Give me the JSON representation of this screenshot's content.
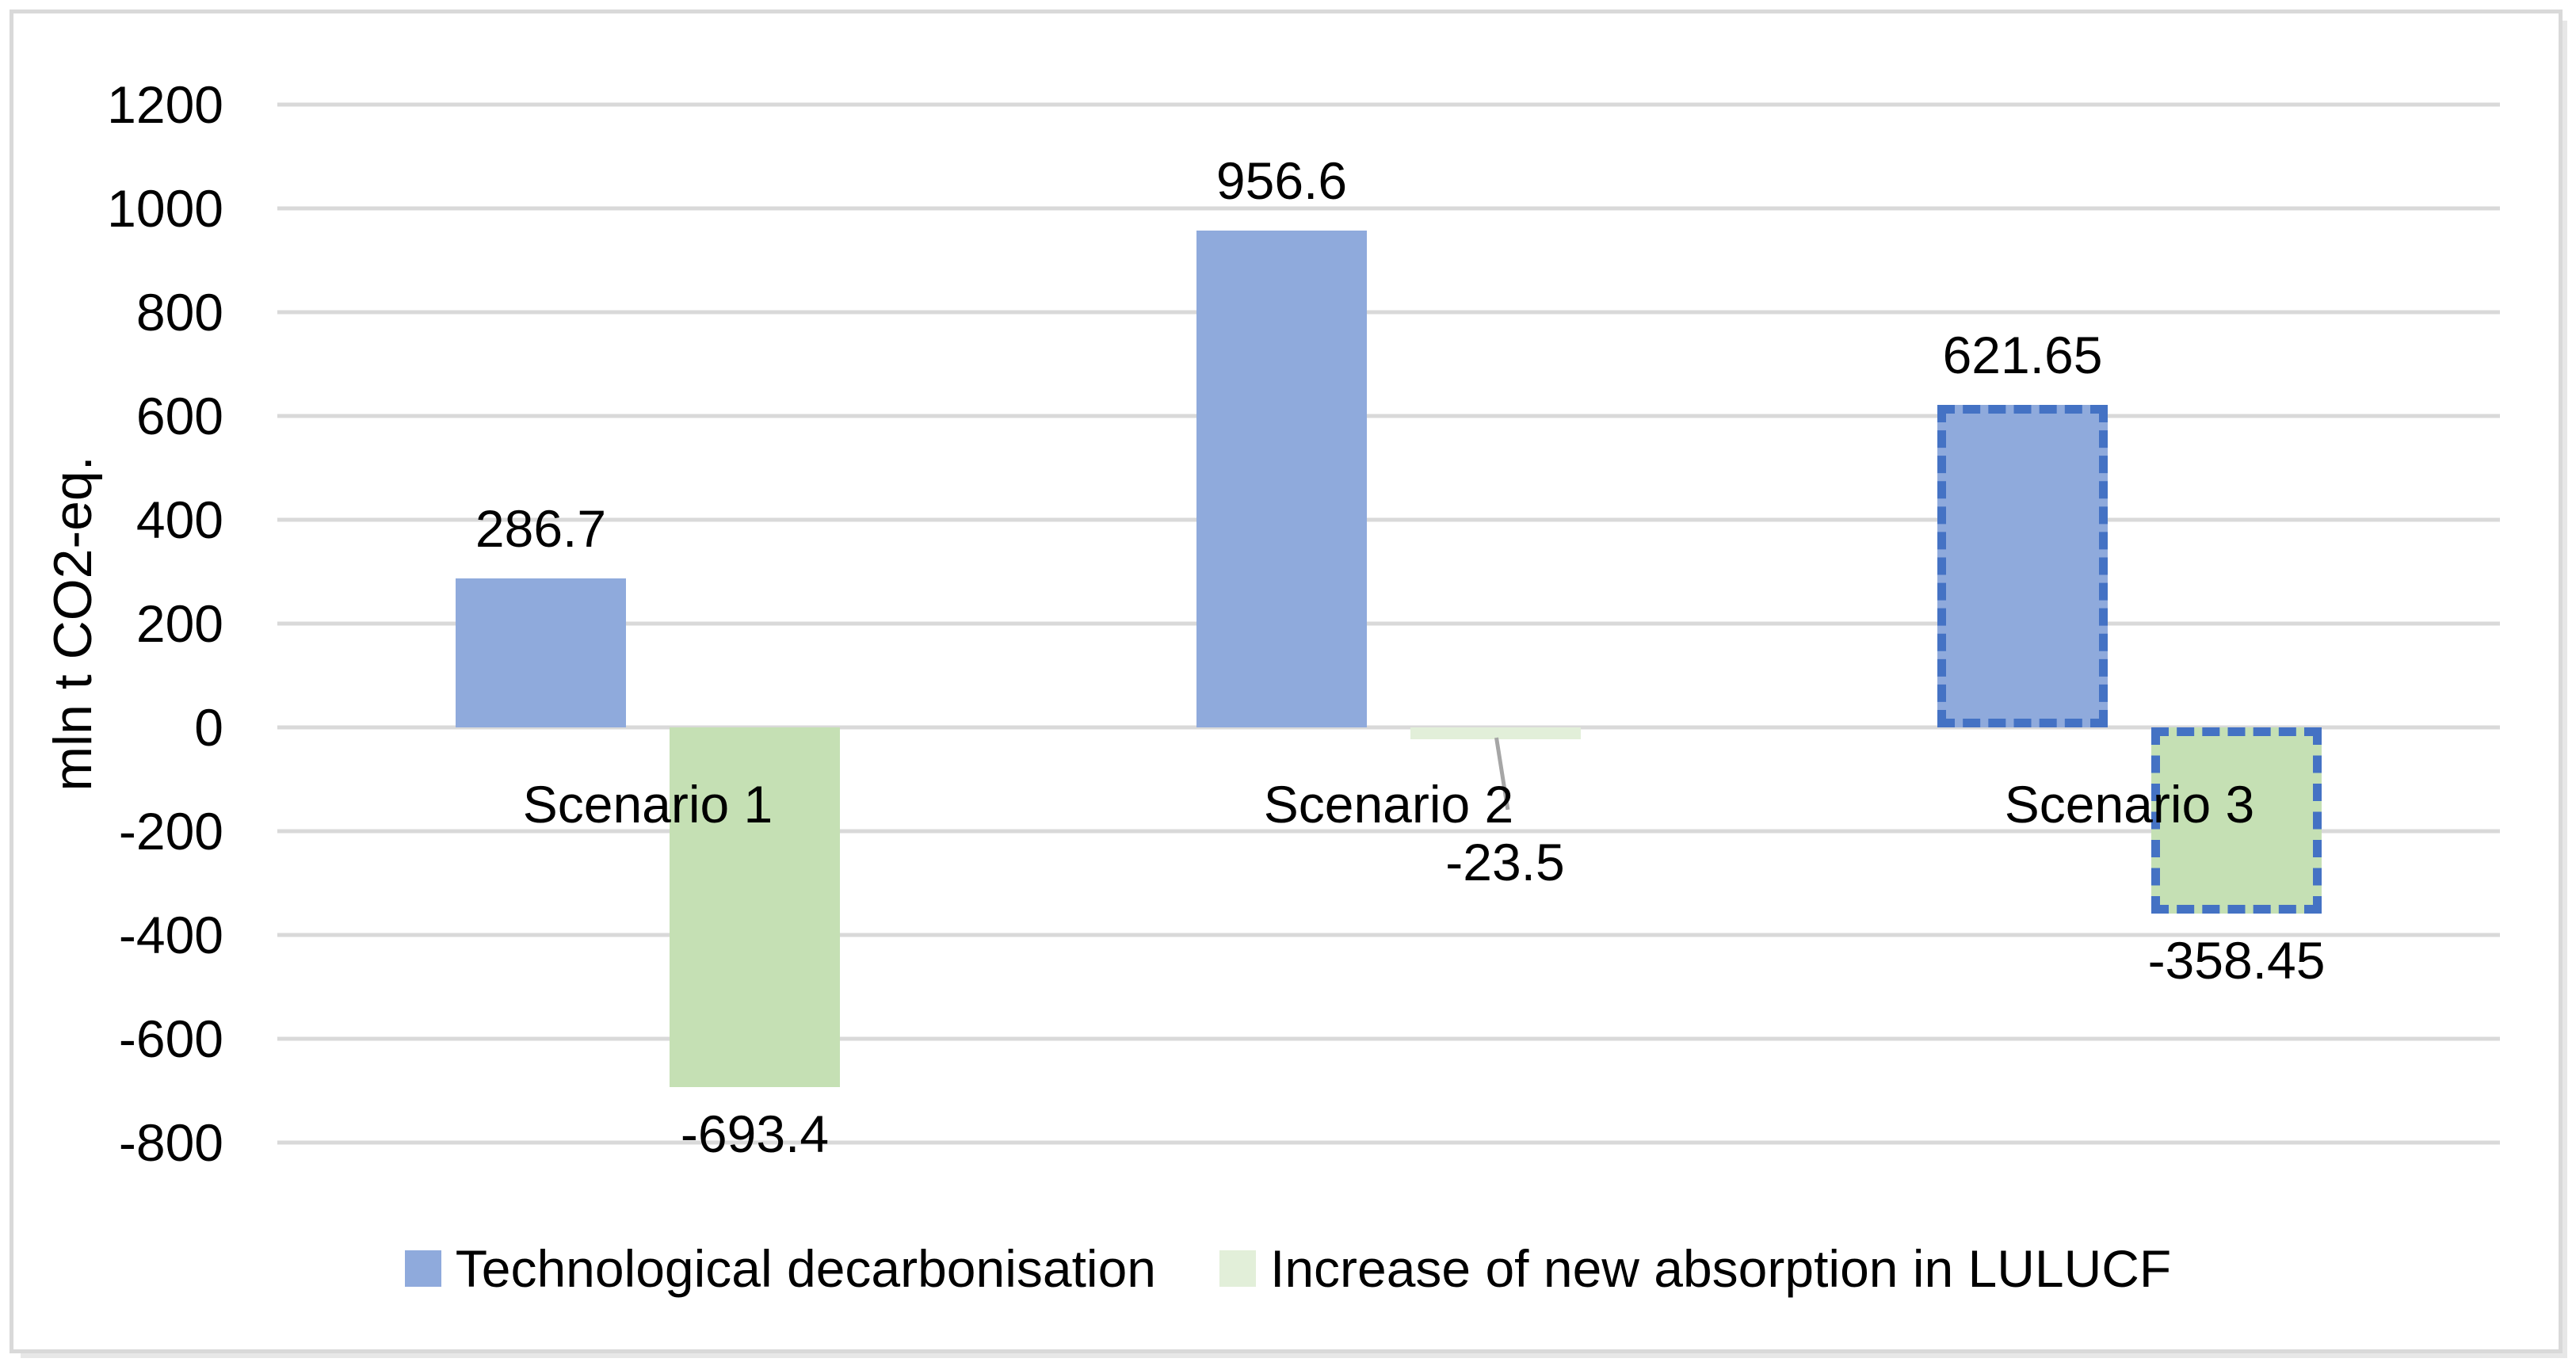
{
  "figure": {
    "background": "#FFFFFF",
    "border_color": "#D9D9D9",
    "text_color": "#000000"
  },
  "chart_data": {
    "type": "bar",
    "title": "",
    "xlabel": "",
    "ylabel": "mln t CO2-eq.",
    "ylim": [
      -800,
      1200
    ],
    "ytick_step": 200,
    "ytick_labels": [
      "1200",
      "1000",
      "800",
      "600",
      "400",
      "200",
      "0",
      "-200",
      "-400",
      "-600",
      "-800"
    ],
    "grid": true,
    "gridline_color": "#D9D9D9",
    "legend_position": "bottom",
    "dashed_border_color": "#4472C4",
    "leader_line_color": "#A6A6A6",
    "categories": [
      "Scenario 1",
      "Scenario 2",
      "Scenario 3"
    ],
    "series": [
      {
        "name": "Technological decarbonisation",
        "slug": "technological-decarbonisation",
        "fill": "#8FAADC",
        "legend_swatch": "#8FAADC",
        "points": [
          {
            "category": "Scenario 1",
            "value": 286.7,
            "label": "286.7"
          },
          {
            "category": "Scenario 2",
            "value": 956.6,
            "label": "956.6"
          },
          {
            "category": "Scenario 3",
            "value": 621.65,
            "label": "621.65",
            "dashed_border": true
          }
        ]
      },
      {
        "name": "Increase of new absorption in LULUCF",
        "slug": "lulucf-absorption",
        "fill": "#C5E0B4",
        "legend_swatch": "#E2EFD9",
        "points": [
          {
            "category": "Scenario 1",
            "value": -693.4,
            "label": "-693.4"
          },
          {
            "category": "Scenario 2",
            "value": -23.5,
            "label": "-23.5",
            "fill": "#E2EFD9",
            "leader_line": true
          },
          {
            "category": "Scenario 3",
            "value": -358.45,
            "label": "-358.45",
            "dashed_border": true
          }
        ]
      }
    ]
  }
}
